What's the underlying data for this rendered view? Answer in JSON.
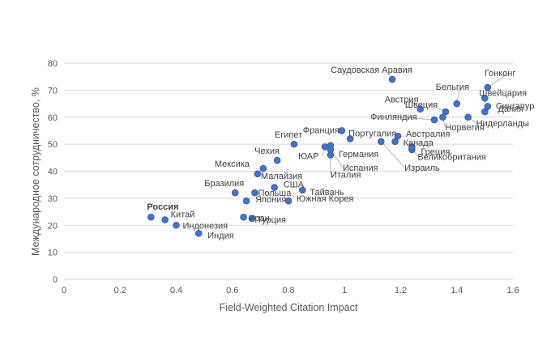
{
  "chart_data": {
    "type": "scatter",
    "title": "",
    "xlabel": "Field-Weighted Citation Impact",
    "ylabel": "Международное сотрудничество, %",
    "xlim": [
      0,
      1.6
    ],
    "ylim": [
      0,
      80
    ],
    "xticks": [
      "0",
      "0.2",
      "0.4",
      "0.6",
      "0.8",
      "1",
      "1.2",
      "1.4",
      "1.6"
    ],
    "yticks": [
      "0",
      "10",
      "20",
      "30",
      "40",
      "50",
      "60",
      "70",
      "80"
    ],
    "grid": "horizontal",
    "legend": "none",
    "marker_color": "#4472c4",
    "points": [
      {
        "label": "Россия",
        "x": 0.31,
        "y": 23,
        "bold": true
      },
      {
        "label": "Китай",
        "x": 0.36,
        "y": 22
      },
      {
        "label": "Индонезия",
        "x": 0.4,
        "y": 20
      },
      {
        "label": "Индия",
        "x": 0.48,
        "y": 17
      },
      {
        "label": "Бразилия",
        "x": 0.61,
        "y": 32
      },
      {
        "label": "Иран",
        "x": 0.64,
        "y": 23
      },
      {
        "label": "Турция",
        "x": 0.67,
        "y": 22.5
      },
      {
        "label": "Япония",
        "x": 0.65,
        "y": 29
      },
      {
        "label": "Польша",
        "x": 0.68,
        "y": 32
      },
      {
        "label": "Малайзия",
        "x": 0.69,
        "y": 39
      },
      {
        "label": "Мексика",
        "x": 0.71,
        "y": 41
      },
      {
        "label": "Чехия",
        "x": 0.76,
        "y": 44
      },
      {
        "label": "США",
        "x": 0.75,
        "y": 34
      },
      {
        "label": "Южная Корея",
        "x": 0.8,
        "y": 29
      },
      {
        "label": "Тайвань",
        "x": 0.85,
        "y": 33
      },
      {
        "label": "Египет",
        "x": 0.82,
        "y": 50
      },
      {
        "label": "ЮАР",
        "x": 0.93,
        "y": 49
      },
      {
        "label": "Германия",
        "x": 0.95,
        "y": 49.5
      },
      {
        "label": "Испания",
        "x": 0.95,
        "y": 48
      },
      {
        "label": "Италия",
        "x": 0.95,
        "y": 46
      },
      {
        "label": "Франция",
        "x": 0.99,
        "y": 55
      },
      {
        "label": "Португалия",
        "x": 1.02,
        "y": 52
      },
      {
        "label": "Саудовская Аравия",
        "x": 1.17,
        "y": 74
      },
      {
        "label": "Австрия",
        "x": 1.27,
        "y": 63
      },
      {
        "label": "Австралия",
        "x": 1.19,
        "y": 53
      },
      {
        "label": "Канада",
        "x": 1.18,
        "y": 51
      },
      {
        "label": "Израиль",
        "x": 1.13,
        "y": 51
      },
      {
        "label": "Греция",
        "x": 1.24,
        "y": 48
      },
      {
        "label": "Великобритания",
        "x": 1.24,
        "y": 49
      },
      {
        "label": "Финляндия",
        "x": 1.32,
        "y": 59
      },
      {
        "label": "Норвегия",
        "x": 1.35,
        "y": 60
      },
      {
        "label": "Швеция",
        "x": 1.36,
        "y": 62
      },
      {
        "label": "Бельгия",
        "x": 1.4,
        "y": 65
      },
      {
        "label": "Нидерланды",
        "x": 1.44,
        "y": 60
      },
      {
        "label": "Гонконг",
        "x": 1.51,
        "y": 71
      },
      {
        "label": "Швейцария",
        "x": 1.5,
        "y": 67
      },
      {
        "label": "Сингапур",
        "x": 1.51,
        "y": 64
      },
      {
        "label": "Дания",
        "x": 1.5,
        "y": 62
      }
    ]
  }
}
